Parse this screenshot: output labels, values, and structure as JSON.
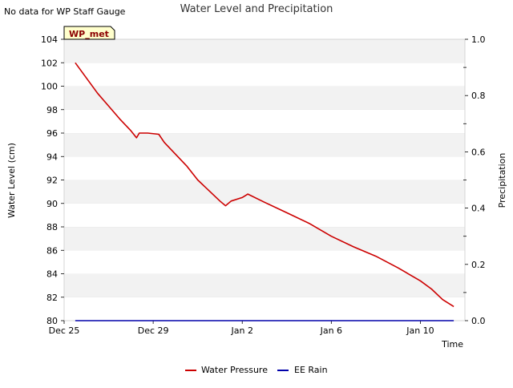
{
  "chart_data": {
    "type": "line",
    "title": "Water Level and Precipitation",
    "note": "No data for WP Staff Gauge",
    "station_tag": "WP_met",
    "xlabel": "Time",
    "ylabel_left": "Water Level (cm)",
    "ylabel_right": "Precipitation",
    "x_range": [
      "2024-12-25",
      "2025-01-12"
    ],
    "xticks": [
      {
        "date": "2024-12-25",
        "label": "Dec 25"
      },
      {
        "date": "2024-12-29",
        "label": "Dec 29"
      },
      {
        "date": "2025-01-02",
        "label": "Jan 2"
      },
      {
        "date": "2025-01-06",
        "label": "Jan 6"
      },
      {
        "date": "2025-01-10",
        "label": "Jan 10"
      }
    ],
    "ylim_left": [
      80,
      104
    ],
    "yticks_left": [
      "80",
      "82",
      "84",
      "86",
      "88",
      "90",
      "92",
      "94",
      "96",
      "98",
      "100",
      "102",
      "104"
    ],
    "ylim_right": [
      0,
      1.0
    ],
    "yticks_right": [
      "0.0",
      "0.2",
      "0.4",
      "0.6",
      "0.8",
      "1.0"
    ],
    "grid": "horizontal bands",
    "legend_position": "bottom-center",
    "colors": {
      "water_pressure": "#cc0000",
      "ee_rain": "#0000aa",
      "band": "#f2f2f2",
      "station_tag_bg": "#ffffcc"
    },
    "series": [
      {
        "name": "Water Pressure",
        "axis": "left",
        "points": [
          [
            "2024-12-25T12:00",
            102.0
          ],
          [
            "2024-12-26T00:00",
            100.7
          ],
          [
            "2024-12-26T12:00",
            99.4
          ],
          [
            "2024-12-27T00:00",
            98.3
          ],
          [
            "2024-12-27T12:00",
            97.2
          ],
          [
            "2024-12-28T00:00",
            96.2
          ],
          [
            "2024-12-28T06:00",
            95.6
          ],
          [
            "2024-12-28T09:00",
            96.0
          ],
          [
            "2024-12-28T18:00",
            96.0
          ],
          [
            "2024-12-29T06:00",
            95.9
          ],
          [
            "2024-12-29T12:00",
            95.2
          ],
          [
            "2024-12-30T00:00",
            94.2
          ],
          [
            "2024-12-30T12:00",
            93.2
          ],
          [
            "2024-12-31T00:00",
            92.0
          ],
          [
            "2024-12-31T12:00",
            91.1
          ],
          [
            "2025-01-01T00:00",
            90.2
          ],
          [
            "2025-01-01T06:00",
            89.8
          ],
          [
            "2025-01-01T12:00",
            90.2
          ],
          [
            "2025-01-02T00:00",
            90.5
          ],
          [
            "2025-01-02T06:00",
            90.8
          ],
          [
            "2025-01-03T00:00",
            90.1
          ],
          [
            "2025-01-04T00:00",
            89.2
          ],
          [
            "2025-01-05T00:00",
            88.3
          ],
          [
            "2025-01-06T00:00",
            87.2
          ],
          [
            "2025-01-07T00:00",
            86.3
          ],
          [
            "2025-01-08T00:00",
            85.5
          ],
          [
            "2025-01-09T00:00",
            84.5
          ],
          [
            "2025-01-10T00:00",
            83.4
          ],
          [
            "2025-01-10T12:00",
            82.7
          ],
          [
            "2025-01-11T00:00",
            81.8
          ],
          [
            "2025-01-11T12:00",
            81.2
          ]
        ]
      },
      {
        "name": "EE Rain",
        "axis": "right",
        "points": [
          [
            "2024-12-25T12:00",
            0.0
          ],
          [
            "2025-01-11T12:00",
            0.0
          ]
        ]
      }
    ]
  }
}
